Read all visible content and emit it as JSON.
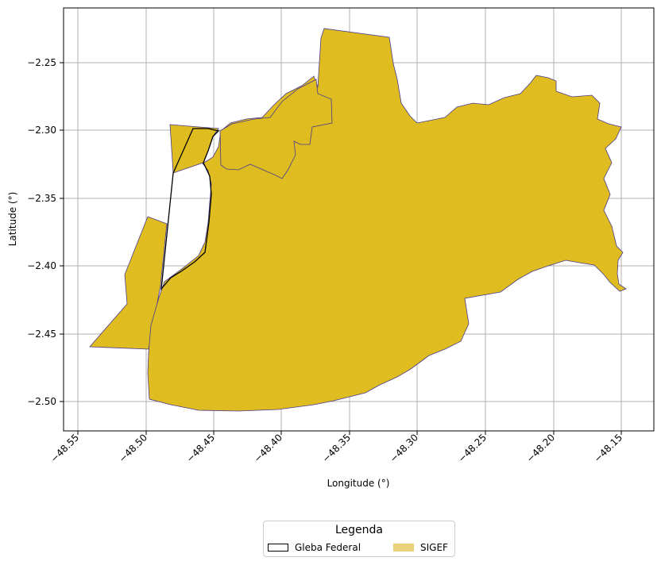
{
  "map": {
    "xlabel": "Longitude (°)",
    "ylabel": "Latitude (°)",
    "x_ticks": [
      "−48.55",
      "−48.50",
      "−48.45",
      "−48.40",
      "−48.35",
      "−48.30",
      "−48.25",
      "−48.20",
      "−48.15"
    ],
    "y_ticks": [
      "−2.25",
      "−2.30",
      "−2.35",
      "−2.40",
      "−2.45",
      "−2.50"
    ],
    "grid": true,
    "colors": {
      "sigef_fill": "#dfbc1f",
      "sigef_edge": "#4b3a8f",
      "gleba_edge": "#000000",
      "grid": "#b0b0b0"
    }
  },
  "legend": {
    "title": "Legenda",
    "items": [
      {
        "label": "Gleba Federal",
        "icon": "outline-rect"
      },
      {
        "label": "SIGEF",
        "icon": "filled-rect"
      }
    ]
  }
}
